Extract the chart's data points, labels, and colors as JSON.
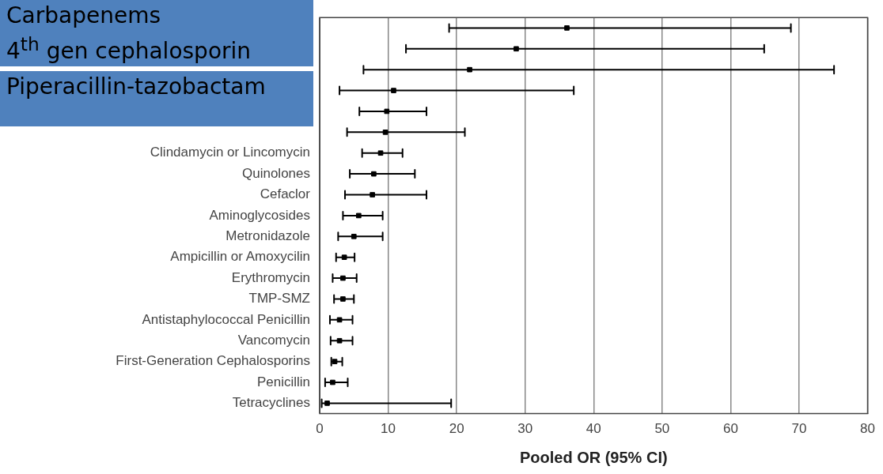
{
  "chart_data": {
    "type": "scatter",
    "orientation": "horizontal",
    "xlabel": "Pooled OR (95% CI)",
    "categories": [
      null,
      null,
      null,
      null,
      null,
      null,
      "Clindamycin or Lincomycin",
      "Quinolones",
      "Cefaclor",
      "Aminoglycosides",
      "Metronidazole",
      "Ampicillin or Amoxycilin",
      "Erythromycin",
      "TMP-SMZ",
      "Antistaphylococcal Penicillin",
      "Vancomycin",
      "First-Generation Cephalosporins",
      "Penicillin",
      "Tetracyclines"
    ],
    "values": [
      36.1,
      28.7,
      21.9,
      10.8,
      9.8,
      9.6,
      8.9,
      7.9,
      7.7,
      5.7,
      5.0,
      3.6,
      3.4,
      3.4,
      2.9,
      2.9,
      2.2,
      1.9,
      1.1
    ],
    "errors": [
      [
        18.9,
        68.8
      ],
      [
        12.6,
        64.9
      ],
      [
        6.4,
        75.1
      ],
      [
        2.9,
        37.1
      ],
      [
        5.8,
        15.6
      ],
      [
        4.0,
        21.2
      ],
      [
        6.2,
        12.1
      ],
      [
        4.4,
        13.9
      ],
      [
        3.7,
        15.6
      ],
      [
        3.4,
        9.2
      ],
      [
        2.7,
        9.2
      ],
      [
        2.4,
        5.1
      ],
      [
        1.9,
        5.4
      ],
      [
        2.1,
        5.0
      ],
      [
        1.5,
        4.8
      ],
      [
        1.6,
        4.8
      ],
      [
        1.7,
        3.3
      ],
      [
        0.8,
        4.1
      ],
      [
        0.3,
        19.2
      ]
    ],
    "color": "#000000",
    "marker": "square",
    "xlim": [
      0,
      80
    ],
    "xticks": [
      0,
      10,
      20,
      30,
      40,
      50,
      60,
      70,
      80
    ],
    "grid": "x",
    "legend": false,
    "annotations": [
      "Carbapenems",
      "4$^{th}$ gen cephalosporin",
      "Piperacillin-tazobactam"
    ]
  }
}
